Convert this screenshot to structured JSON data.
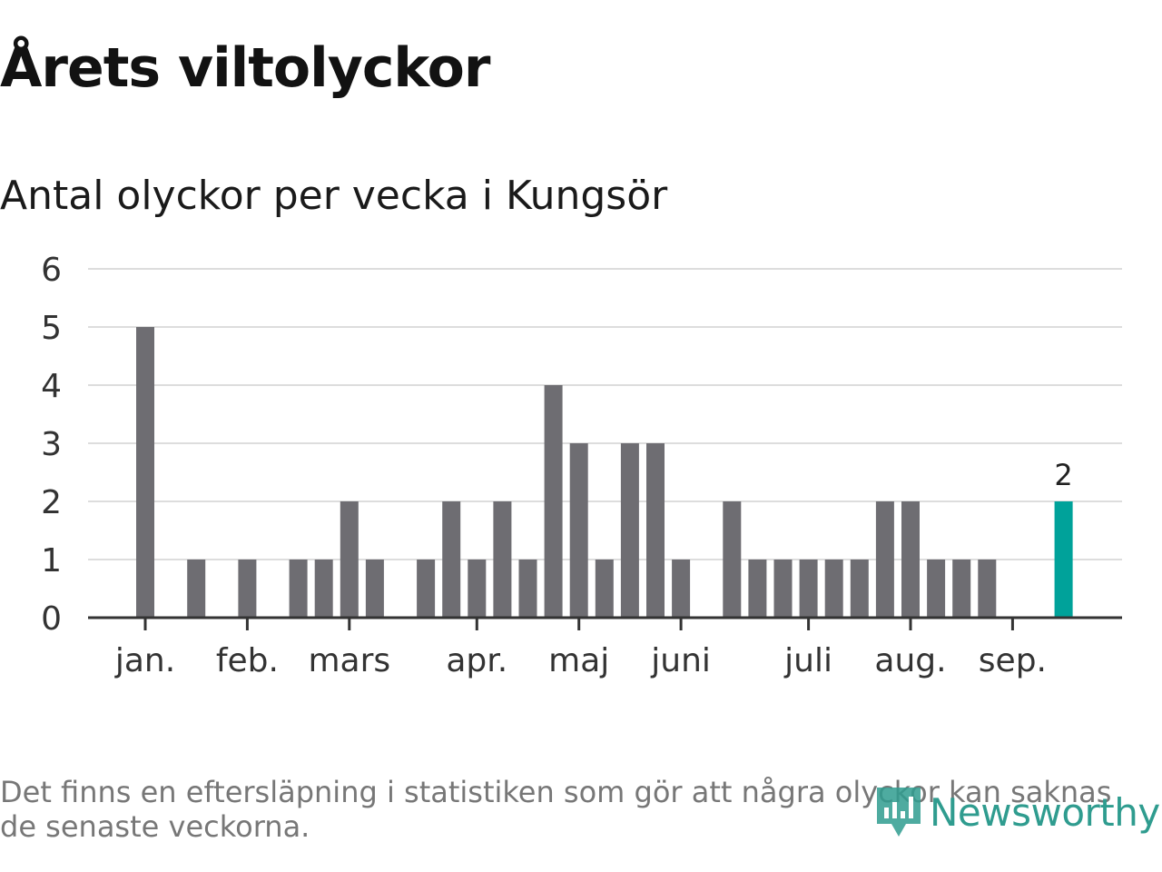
{
  "header": {
    "title": "Årets viltolyckor",
    "subtitle": "Antal olyckor per vecka i Kungsör"
  },
  "footer": {
    "note": "Det finns en eftersläpning i statistiken som gör att några olyckor kan saknas de senaste veckorna.",
    "brand": "Newsworthy"
  },
  "colors": {
    "bar": "#6e6d72",
    "highlight": "#00a29a",
    "grid": "#dddddd",
    "axis": "#333333",
    "text": "#333333",
    "brand": "#2f9c8f"
  },
  "chart_data": {
    "type": "bar",
    "title": "Årets viltolyckor",
    "subtitle": "Antal olyckor per vecka i Kungsör",
    "xlabel": "",
    "ylabel": "",
    "ylim": [
      0,
      6
    ],
    "yticks": [
      0,
      1,
      2,
      3,
      4,
      5,
      6
    ],
    "grid": true,
    "weeks": [
      1,
      2,
      3,
      4,
      5,
      6,
      7,
      8,
      9,
      10,
      11,
      12,
      13,
      14,
      15,
      16,
      17,
      18,
      19,
      20,
      21,
      22,
      23,
      24,
      25,
      26,
      27,
      28,
      29,
      30,
      31,
      32,
      33,
      34,
      35,
      36,
      37,
      38
    ],
    "values": [
      5,
      0,
      1,
      0,
      1,
      0,
      1,
      1,
      2,
      1,
      0,
      1,
      2,
      1,
      2,
      1,
      4,
      3,
      1,
      3,
      3,
      1,
      0,
      2,
      1,
      1,
      1,
      1,
      1,
      2,
      2,
      1,
      1,
      1,
      0,
      0,
      2,
      null
    ],
    "highlight_week": 37,
    "highlight_label": "2",
    "month_ticks": [
      {
        "label": "jan.",
        "week": 1
      },
      {
        "label": "feb.",
        "week": 5
      },
      {
        "label": "mars",
        "week": 9
      },
      {
        "label": "apr.",
        "week": 14
      },
      {
        "label": "maj",
        "week": 18
      },
      {
        "label": "juni",
        "week": 22
      },
      {
        "label": "juli",
        "week": 27
      },
      {
        "label": "aug.",
        "week": 31
      },
      {
        "label": "sep.",
        "week": 35
      }
    ]
  }
}
